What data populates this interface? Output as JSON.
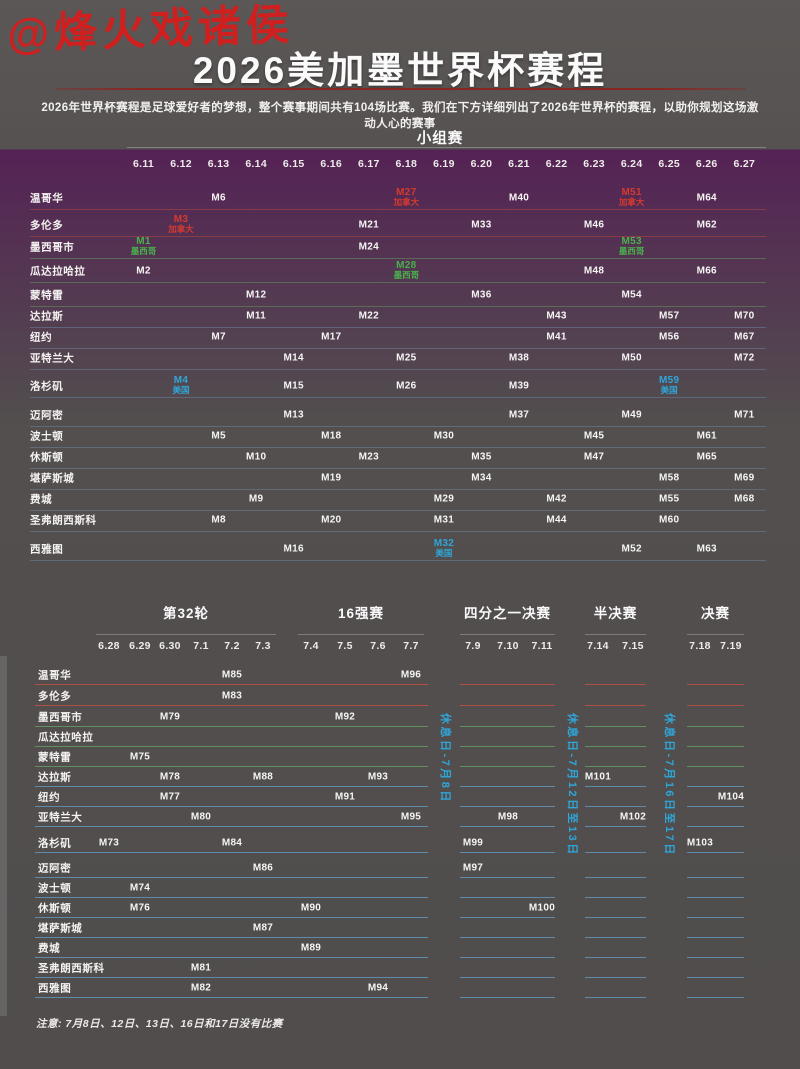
{
  "watermark": "@烽火戏诸侯",
  "header": {
    "title": "2026美加墨世界杯赛程",
    "subtitle": "2026年世界杯赛程是足球爱好者的梦想，整个赛事期间共有104场比赛。我们在下方详细列出了2026年世界杯的赛程，以助你规划这场激动人心的赛事"
  },
  "footnote": "注意: 7月8日、12日、13日、16日和17日没有比赛",
  "colors": {
    "canada": "#d43a2e",
    "mexico": "#49b04d",
    "usa": "#2fa6da",
    "rest_day": "#2fa6da",
    "title_rule": "#8a2622",
    "watermark": "#d01f1f",
    "line_group": {
      "canada": "rgba(176,72,62,0.55)",
      "mexico": "rgba(96,158,96,0.50)",
      "usa": "rgba(112,150,184,0.42)"
    },
    "line_knockout": {
      "canada": "rgba(204,80,66,0.78)",
      "mexico": "rgba(100,172,100,0.72)",
      "usa": "rgba(102,162,206,0.72)"
    }
  },
  "chart_data": {
    "type": "table",
    "title": "2026美加墨世界杯赛程",
    "group_stage": {
      "label": "小组赛",
      "dates": [
        "6.11",
        "6.12",
        "6.13",
        "6.14",
        "6.15",
        "6.16",
        "6.17",
        "6.18",
        "6.19",
        "6.20",
        "6.21",
        "6.22",
        "6.23",
        "6.24",
        "6.25",
        "6.26",
        "6.27"
      ],
      "rows": [
        {
          "city": "温哥华",
          "country": "canada",
          "matches": [
            [
              "6.13",
              "M6"
            ],
            [
              "6.18",
              "M27",
              "加拿大"
            ],
            [
              "6.21",
              "M40"
            ],
            [
              "6.24",
              "M51",
              "加拿大"
            ],
            [
              "6.26",
              "M64"
            ]
          ]
        },
        {
          "city": "多伦多",
          "country": "canada",
          "matches": [
            [
              "6.12",
              "M3",
              "加拿大"
            ],
            [
              "6.17",
              "M21"
            ],
            [
              "6.20",
              "M33"
            ],
            [
              "6.23",
              "M46"
            ],
            [
              "6.26",
              "M62"
            ]
          ]
        },
        {
          "city": "墨西哥市",
          "country": "mexico",
          "matches": [
            [
              "6.11",
              "M1",
              "墨西哥"
            ],
            [
              "6.17",
              "M24"
            ],
            [
              "6.24",
              "M53",
              "墨西哥"
            ]
          ]
        },
        {
          "city": "瓜达拉哈拉",
          "country": "mexico",
          "matches": [
            [
              "6.11",
              "M2"
            ],
            [
              "6.18",
              "M28",
              "墨西哥"
            ],
            [
              "6.23",
              "M48"
            ],
            [
              "6.26",
              "M66"
            ]
          ]
        },
        {
          "city": "蒙特雷",
          "country": "mexico",
          "matches": [
            [
              "6.14",
              "M12"
            ],
            [
              "6.20",
              "M36"
            ],
            [
              "6.24",
              "M54"
            ]
          ]
        },
        {
          "city": "达拉斯",
          "country": "usa",
          "matches": [
            [
              "6.14",
              "M11"
            ],
            [
              "6.17",
              "M22"
            ],
            [
              "6.22",
              "M43"
            ],
            [
              "6.25",
              "M57"
            ],
            [
              "6.27",
              "M70"
            ]
          ]
        },
        {
          "city": "纽约",
          "country": "usa",
          "matches": [
            [
              "6.13",
              "M7"
            ],
            [
              "6.16",
              "M17"
            ],
            [
              "6.22",
              "M41"
            ],
            [
              "6.25",
              "M56"
            ],
            [
              "6.27",
              "M67"
            ]
          ]
        },
        {
          "city": "亚特兰大",
          "country": "usa",
          "matches": [
            [
              "6.15",
              "M14"
            ],
            [
              "6.18",
              "M25"
            ],
            [
              "6.21",
              "M38"
            ],
            [
              "6.24",
              "M50"
            ],
            [
              "6.27",
              "M72"
            ]
          ]
        },
        {
          "city": "洛杉矶",
          "country": "usa",
          "matches": [
            [
              "6.12",
              "M4",
              "美国"
            ],
            [
              "6.15",
              "M15"
            ],
            [
              "6.18",
              "M26"
            ],
            [
              "6.21",
              "M39"
            ],
            [
              "6.25",
              "M59",
              "美国"
            ]
          ]
        },
        {
          "city": "迈阿密",
          "country": "usa",
          "matches": [
            [
              "6.15",
              "M13"
            ],
            [
              "6.21",
              "M37"
            ],
            [
              "6.24",
              "M49"
            ],
            [
              "6.27",
              "M71"
            ]
          ]
        },
        {
          "city": "波士顿",
          "country": "usa",
          "matches": [
            [
              "6.13",
              "M5"
            ],
            [
              "6.16",
              "M18"
            ],
            [
              "6.19",
              "M30"
            ],
            [
              "6.23",
              "M45"
            ],
            [
              "6.26",
              "M61"
            ]
          ]
        },
        {
          "city": "休斯顿",
          "country": "usa",
          "matches": [
            [
              "6.14",
              "M10"
            ],
            [
              "6.17",
              "M23"
            ],
            [
              "6.20",
              "M35"
            ],
            [
              "6.23",
              "M47"
            ],
            [
              "6.26",
              "M65"
            ]
          ]
        },
        {
          "city": "堪萨斯城",
          "country": "usa",
          "matches": [
            [
              "6.16",
              "M19"
            ],
            [
              "6.20",
              "M34"
            ],
            [
              "6.25",
              "M58"
            ],
            [
              "6.27",
              "M69"
            ]
          ]
        },
        {
          "city": "费城",
          "country": "usa",
          "matches": [
            [
              "6.14",
              "M9"
            ],
            [
              "6.19",
              "M29"
            ],
            [
              "6.22",
              "M42"
            ],
            [
              "6.25",
              "M55"
            ],
            [
              "6.27",
              "M68"
            ]
          ]
        },
        {
          "city": "圣弗朗西斯科",
          "country": "usa",
          "matches": [
            [
              "6.13",
              "M8"
            ],
            [
              "6.16",
              "M20"
            ],
            [
              "6.19",
              "M31"
            ],
            [
              "6.22",
              "M44"
            ],
            [
              "6.25",
              "M60"
            ]
          ]
        },
        {
          "city": "西雅图",
          "country": "usa",
          "matches": [
            [
              "6.15",
              "M16"
            ],
            [
              "6.19",
              "M32",
              "美国"
            ],
            [
              "6.24",
              "M52"
            ],
            [
              "6.26",
              "M63"
            ]
          ]
        }
      ]
    },
    "knockout": {
      "sections": [
        {
          "label": "第32轮",
          "dates": [
            "6.28",
            "6.29",
            "6.30",
            "7.1",
            "7.2",
            "7.3"
          ]
        },
        {
          "label": "16强赛",
          "dates": [
            "7.4",
            "7.5",
            "7.6",
            "7.7"
          ]
        },
        {
          "label": "四分之一决赛",
          "dates": [
            "7.9",
            "7.10",
            "7.11"
          ]
        },
        {
          "label": "半决赛",
          "dates": [
            "7.14",
            "7.15"
          ]
        },
        {
          "label": "决赛",
          "dates": [
            "7.18",
            "7.19"
          ]
        }
      ],
      "rest_days": [
        "休息日-7月8日",
        "休息日-7月12日至13日",
        "休息日-7月16日至17日"
      ],
      "rows": [
        {
          "city": "温哥华",
          "country": "canada",
          "matches": [
            [
              "7.2",
              "M85"
            ],
            [
              "7.7",
              "M96"
            ]
          ]
        },
        {
          "city": "多伦多",
          "country": "canada",
          "matches": [
            [
              "7.2",
              "M83"
            ]
          ]
        },
        {
          "city": "墨西哥市",
          "country": "mexico",
          "matches": [
            [
              "6.30",
              "M79"
            ],
            [
              "7.5",
              "M92"
            ]
          ]
        },
        {
          "city": "瓜达拉哈拉",
          "country": "mexico",
          "matches": []
        },
        {
          "city": "蒙特雷",
          "country": "mexico",
          "matches": [
            [
              "6.29",
              "M75"
            ]
          ]
        },
        {
          "city": "达拉斯",
          "country": "usa",
          "matches": [
            [
              "6.30",
              "M78"
            ],
            [
              "7.3",
              "M88"
            ],
            [
              "7.6",
              "M93"
            ],
            [
              "7.14",
              "M101"
            ]
          ]
        },
        {
          "city": "纽约",
          "country": "usa",
          "matches": [
            [
              "6.30",
              "M77"
            ],
            [
              "7.5",
              "M91"
            ],
            [
              "7.19",
              "M104"
            ]
          ]
        },
        {
          "city": "亚特兰大",
          "country": "usa",
          "matches": [
            [
              "7.1",
              "M80"
            ],
            [
              "7.7",
              "M95"
            ],
            [
              "7.10",
              "M98"
            ],
            [
              "7.15",
              "M102"
            ]
          ]
        },
        {
          "city": "洛杉矶",
          "country": "usa",
          "matches": [
            [
              "6.28",
              "M73"
            ],
            [
              "7.2",
              "M84"
            ],
            [
              "7.9",
              "M99"
            ],
            [
              "7.18",
              "M103"
            ]
          ]
        },
        {
          "city": "迈阿密",
          "country": "usa",
          "matches": [
            [
              "7.3",
              "M86"
            ],
            [
              "7.9",
              "M97"
            ]
          ]
        },
        {
          "city": "波士顿",
          "country": "usa",
          "matches": [
            [
              "6.29",
              "M74"
            ]
          ]
        },
        {
          "city": "休斯顿",
          "country": "usa",
          "matches": [
            [
              "6.29",
              "M76"
            ],
            [
              "7.4",
              "M90"
            ],
            [
              "7.11",
              "M100"
            ]
          ]
        },
        {
          "city": "堪萨斯城",
          "country": "usa",
          "matches": [
            [
              "7.3",
              "M87"
            ]
          ]
        },
        {
          "city": "费城",
          "country": "usa",
          "matches": [
            [
              "7.4",
              "M89"
            ]
          ]
        },
        {
          "city": "圣弗朗西斯科",
          "country": "usa",
          "matches": [
            [
              "7.1",
              "M81"
            ]
          ]
        },
        {
          "city": "西雅图",
          "country": "usa",
          "matches": [
            [
              "7.1",
              "M82"
            ],
            [
              "7.6",
              "M94"
            ]
          ]
        }
      ]
    }
  }
}
